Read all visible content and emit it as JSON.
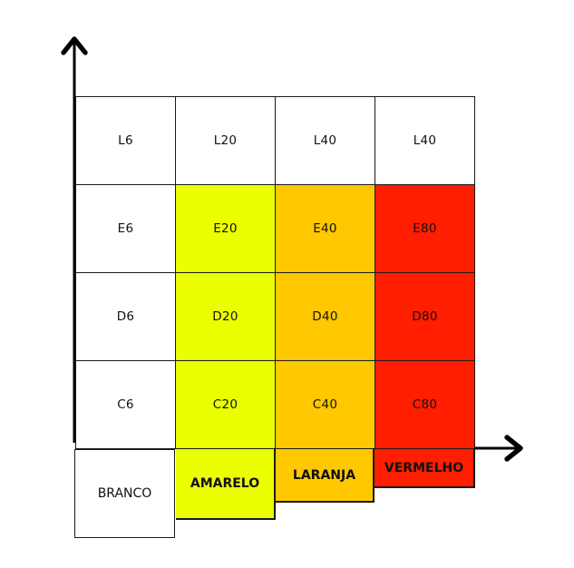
{
  "colors": {
    "branco": "#ffffff",
    "amarelo": "#ebff00",
    "laranja": "#ffc800",
    "vermelho": "#ff1e00",
    "line": "#1a1a1a"
  },
  "grid": {
    "rows": [
      [
        "L6",
        "L20",
        "L40",
        "L40"
      ],
      [
        "E6",
        "E20",
        "E40",
        "E80"
      ],
      [
        "D6",
        "D20",
        "D40",
        "D80"
      ],
      [
        "C6",
        "C20",
        "C40",
        "C80"
      ]
    ]
  },
  "columns": [
    {
      "name": "BRANCO",
      "color": "branco"
    },
    {
      "name": "AMARELO",
      "color": "amarelo"
    },
    {
      "name": "LARANJA",
      "color": "laranja"
    },
    {
      "name": "VERMELHO",
      "color": "vermelho"
    }
  ]
}
